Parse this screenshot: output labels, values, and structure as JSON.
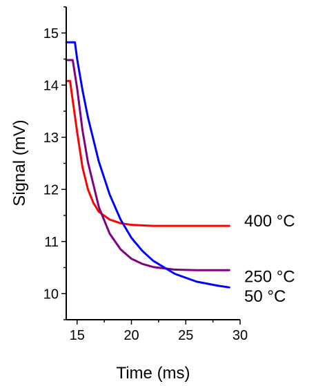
{
  "chart_data": {
    "type": "line",
    "title": "",
    "xlabel": "Time (ms)",
    "ylabel": "Signal (mV)",
    "xlim": [
      14,
      30
    ],
    "ylim": [
      9.5,
      15.5
    ],
    "x_ticks": [
      15,
      20,
      25,
      30
    ],
    "y_ticks": [
      10,
      11,
      12,
      13,
      14,
      15
    ],
    "grid": false,
    "legend": "inline labels at right end of curves",
    "series": [
      {
        "name": "400 °C",
        "color": "#ff0000",
        "x": [
          14.0,
          14.35,
          14.35,
          15.0,
          15.5,
          16.0,
          16.5,
          17.0,
          18.0,
          19.0,
          20.0,
          22.0,
          25.0,
          29.0
        ],
        "y": [
          14.08,
          14.08,
          14.08,
          13.1,
          12.42,
          12.0,
          11.74,
          11.57,
          11.42,
          11.35,
          11.32,
          11.3,
          11.3,
          11.3
        ]
      },
      {
        "name": "250 °C",
        "color": "#800080",
        "x": [
          14.0,
          14.6,
          15.0,
          15.5,
          16.0,
          17.0,
          18.0,
          19.0,
          20.0,
          21.0,
          22.0,
          24.0,
          26.0,
          29.0
        ],
        "y": [
          14.48,
          14.48,
          13.94,
          13.13,
          12.52,
          11.66,
          11.15,
          10.85,
          10.67,
          10.57,
          10.51,
          10.46,
          10.45,
          10.45
        ]
      },
      {
        "name": "50 °C",
        "color": "#0000ff",
        "x": [
          14.0,
          14.8,
          15.0,
          15.5,
          16.0,
          17.0,
          18.0,
          19.0,
          20.0,
          21.0,
          22.0,
          24.0,
          26.0,
          28.0,
          29.0
        ],
        "y": [
          14.82,
          14.82,
          14.5,
          13.9,
          13.38,
          12.53,
          11.9,
          11.42,
          11.07,
          10.82,
          10.63,
          10.38,
          10.23,
          10.15,
          10.12
        ]
      }
    ]
  }
}
